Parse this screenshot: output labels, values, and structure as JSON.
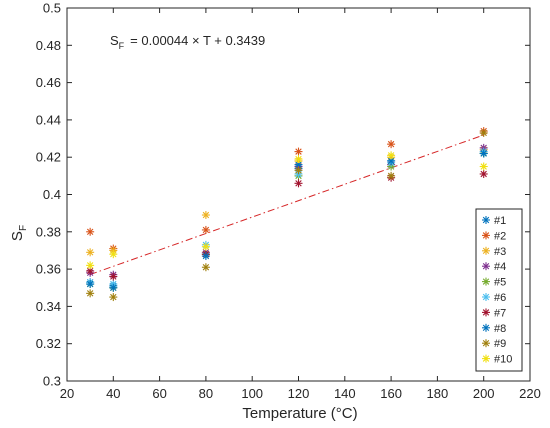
{
  "chart_data": {
    "type": "scatter",
    "xlabel": "Temperature (°C)",
    "ylabel": "S",
    "ylabel_sub": "F",
    "xlim": [
      20,
      220
    ],
    "ylim": [
      0.3,
      0.5
    ],
    "xticks": [
      "20",
      "40",
      "60",
      "80",
      "100",
      "120",
      "140",
      "160",
      "180",
      "200",
      "220"
    ],
    "yticks": [
      "0.3",
      "0.32",
      "0.34",
      "0.36",
      "0.38",
      "0.4",
      "0.42",
      "0.44",
      "0.46",
      "0.48",
      "0.5"
    ],
    "grid": false,
    "legend_position": "right",
    "marker": "*",
    "annotation": {
      "lhs": "S",
      "lhs_sub": "F",
      "rhs": "= 0.00044 × T + 0.3439"
    },
    "fit_line": {
      "slope": 0.00044,
      "intercept": 0.3439,
      "x_range": [
        30,
        200
      ],
      "color": "#d62728",
      "style": "dash-dot"
    },
    "x": [
      30,
      40,
      80,
      120,
      160,
      200
    ],
    "series": [
      {
        "name": "#1",
        "color": "#0072bd",
        "values": [
          0.353,
          0.351,
          0.368,
          0.414,
          0.418,
          0.422
        ]
      },
      {
        "name": "#2",
        "color": "#d95319",
        "values": [
          0.38,
          0.371,
          0.381,
          0.423,
          0.427,
          0.434
        ]
      },
      {
        "name": "#3",
        "color": "#edb120",
        "values": [
          0.369,
          0.37,
          0.389,
          0.418,
          0.42,
          0.424
        ]
      },
      {
        "name": "#4",
        "color": "#7e2f8e",
        "values": [
          0.358,
          0.357,
          0.369,
          0.415,
          0.416,
          0.425
        ]
      },
      {
        "name": "#5",
        "color": "#77ac30",
        "values": [
          0.352,
          0.35,
          0.368,
          0.41,
          0.415,
          0.422
        ]
      },
      {
        "name": "#6",
        "color": "#4dbeee",
        "values": [
          0.353,
          0.352,
          0.373,
          0.411,
          0.417,
          0.423
        ]
      },
      {
        "name": "#7",
        "color": "#a2142f",
        "values": [
          0.359,
          0.356,
          0.368,
          0.406,
          0.409,
          0.411
        ]
      },
      {
        "name": "#8",
        "color": "#0072bd",
        "values": [
          0.352,
          0.35,
          0.367,
          0.416,
          0.418,
          0.422
        ]
      },
      {
        "name": "#9",
        "color": "#a0800e",
        "values": [
          0.347,
          0.345,
          0.361,
          0.413,
          0.41,
          0.433
        ]
      },
      {
        "name": "#10",
        "color": "#f1e010",
        "values": [
          0.362,
          0.368,
          0.372,
          0.419,
          0.421,
          0.415
        ]
      }
    ]
  }
}
